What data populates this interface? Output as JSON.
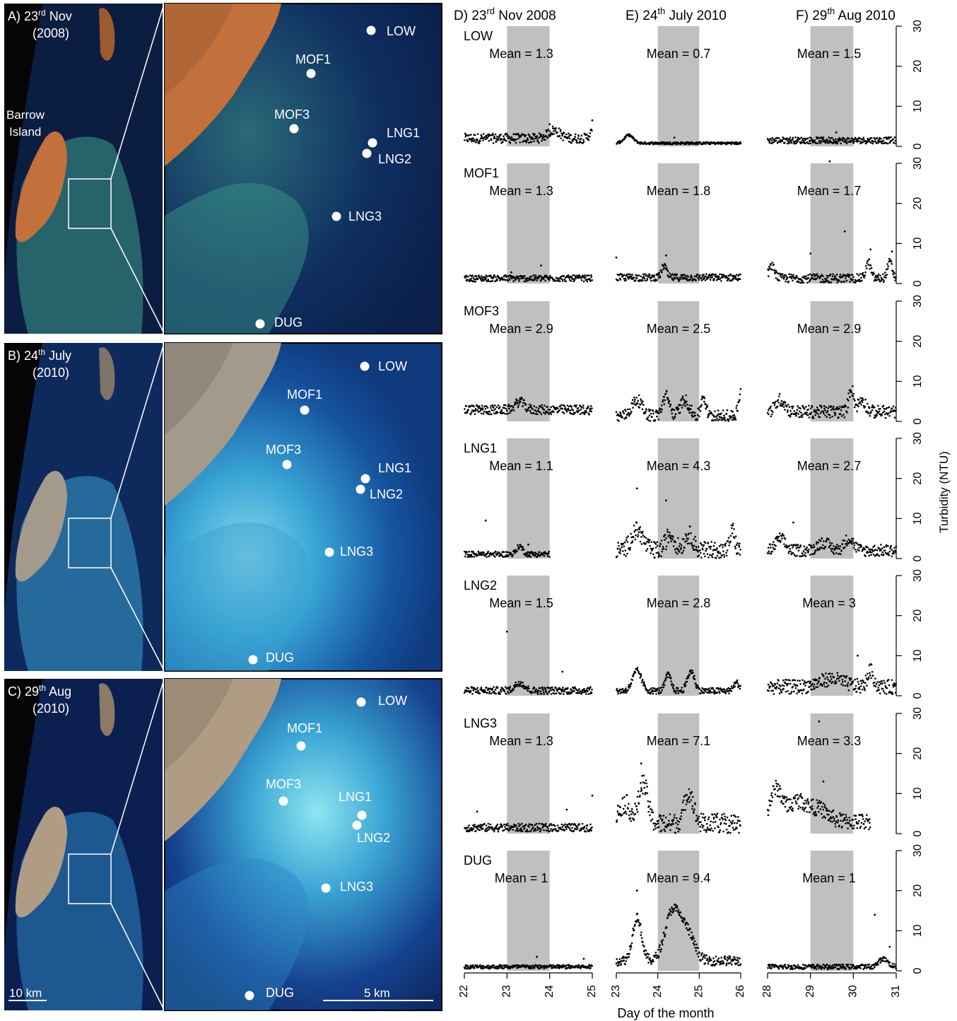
{
  "rows": [
    {
      "label": "A) 23",
      "sup": "rd",
      "label_rest": " Nov",
      "year": "(2008)",
      "theme": "nov"
    },
    {
      "label": "B) 24",
      "sup": "th",
      "label_rest": " July",
      "year": "(2010)",
      "theme": "jul"
    },
    {
      "label": "C) 29",
      "sup": "th",
      "label_rest": " Aug",
      "year": "(2010)",
      "theme": "aug"
    }
  ],
  "island_label": [
    "Barrow",
    "Island"
  ],
  "scale_left": "10 km",
  "scale_right": "5 km",
  "sites": [
    {
      "name": "LOW",
      "pos": [
        [
          525,
          43
        ],
        [
          516,
          518
        ],
        [
          511,
          993
        ]
      ],
      "lab": [
        [
          547,
          44
        ],
        [
          535,
          518
        ],
        [
          535,
          991
        ]
      ]
    },
    {
      "name": "MOF1",
      "pos": [
        [
          440,
          104
        ],
        [
          431,
          580
        ],
        [
          426,
          1055
        ]
      ],
      "lab": [
        [
          418,
          84
        ],
        [
          406,
          558
        ],
        [
          406,
          1030
        ]
      ]
    },
    {
      "name": "MOF3",
      "pos": [
        [
          416,
          182
        ],
        [
          406,
          657
        ],
        [
          401,
          1133
        ]
      ],
      "lab": [
        [
          388,
          162
        ],
        [
          376,
          636
        ],
        [
          376,
          1109
        ]
      ]
    },
    {
      "name": "LNG1",
      "pos": [
        [
          527,
          202
        ],
        [
          517,
          677
        ],
        [
          512,
          1153
        ]
      ],
      "lab": [
        [
          547,
          188
        ],
        [
          535,
          662
        ],
        [
          479,
          1127
        ]
      ]
    },
    {
      "name": "LNG2",
      "pos": [
        [
          519,
          217
        ],
        [
          510,
          692
        ],
        [
          505,
          1167
        ]
      ],
      "lab": [
        [
          535,
          225
        ],
        [
          523,
          699
        ],
        [
          505,
          1185
        ]
      ]
    },
    {
      "name": "LNG3",
      "pos": [
        [
          476,
          306
        ],
        [
          466,
          781
        ],
        [
          461,
          1256
        ]
      ],
      "lab": [
        [
          493,
          306
        ],
        [
          481,
          780
        ],
        [
          481,
          1254
        ]
      ]
    },
    {
      "name": "DUG",
      "pos": [
        [
          368,
          458
        ],
        [
          358,
          933
        ],
        [
          353,
          1408
        ]
      ],
      "lab": [
        [
          388,
          456
        ],
        [
          376,
          930
        ],
        [
          376,
          1404
        ]
      ]
    }
  ],
  "chart_data": {
    "type": "scatter",
    "column_titles": [
      {
        "pre": "D) 23",
        "sup": "rd",
        "post": " Nov 2008"
      },
      {
        "pre": "E) 24",
        "sup": "th",
        "post": " July 2010"
      },
      {
        "pre": "F) 29",
        "sup": "th",
        "post": " Aug 2010"
      }
    ],
    "x_ranges": [
      [
        22,
        25
      ],
      [
        23,
        26
      ],
      [
        28,
        31
      ]
    ],
    "x_ticks": [
      [
        22,
        23,
        24,
        25
      ],
      [
        23,
        24,
        25,
        26
      ],
      [
        28,
        29,
        30,
        31
      ]
    ],
    "shaded_days": [
      [
        23,
        24
      ],
      [
        24,
        25
      ],
      [
        29,
        30
      ]
    ],
    "xlabel": "Day of the month",
    "ylabel": "Turbidity (NTU)",
    "ylim": [
      0,
      30
    ],
    "y_ticks": [
      0,
      10,
      20,
      30
    ],
    "marker_color": "#000000",
    "shade_color": "#c0c0c0",
    "panels": [
      {
        "site": "LOW",
        "means": [
          "Mean = 1.3",
          "Mean = 0.7",
          "Mean = 1.5"
        ],
        "base": [
          2,
          0.8,
          1.5
        ],
        "spread": [
          1.2,
          0.3,
          0.8
        ],
        "end": [
          25,
          26,
          31
        ],
        "peaks": [
          [
            [
              24.1,
              2,
              0.2
            ],
            [
              25,
              1.5,
              0.1
            ]
          ],
          [
            [
              23.3,
              2,
              0.15
            ]
          ],
          []
        ],
        "outliers": [
          [
            [
              24.0,
              5.5
            ],
            [
              25,
              6.5
            ]
          ],
          [
            [
              24.4,
              2.2
            ]
          ],
          [
            [
              29.6,
              3.5
            ]
          ]
        ]
      },
      {
        "site": "MOF1",
        "means": [
          "Mean = 1.3",
          "Mean = 1.8",
          "Mean = 1.7"
        ],
        "base": [
          1.3,
          1.5,
          1.3
        ],
        "spread": [
          0.8,
          0.9,
          1.1
        ],
        "end": [
          25,
          26,
          31
        ],
        "peaks": [
          [],
          [
            [
              24.15,
              3,
              0.08
            ]
          ],
          [
            [
              28.1,
              3,
              0.1
            ],
            [
              30.35,
              4,
              0.08
            ],
            [
              30.85,
              4,
              0.08
            ]
          ]
        ],
        "outliers": [
          [
            [
              23.1,
              2.8
            ],
            [
              23.8,
              4.5
            ]
          ],
          [
            [
              23.0,
              6.5
            ],
            [
              24.2,
              7
            ]
          ],
          [
            [
              29.45,
              30.5
            ],
            [
              29.8,
              13
            ],
            [
              29.0,
              7.5
            ],
            [
              30.4,
              8.5
            ],
            [
              30.9,
              8
            ]
          ]
        ]
      },
      {
        "site": "MOF3",
        "means": [
          "Mean = 2.9",
          "Mean = 2.5",
          "Mean = 2.9"
        ],
        "base": [
          2.9,
          1.3,
          2.4
        ],
        "spread": [
          1.2,
          1.5,
          1.6
        ],
        "end": [
          25,
          26,
          31
        ],
        "peaks": [
          [
            [
              23.3,
              2,
              0.15
            ]
          ],
          [
            [
              23.5,
              4,
              0.18
            ],
            [
              24.2,
              5,
              0.12
            ],
            [
              24.65,
              4,
              0.15
            ],
            [
              25.1,
              5,
              0.08
            ],
            [
              26,
              6,
              0.08
            ]
          ],
          [
            [
              28.3,
              3,
              0.15
            ],
            [
              29.95,
              6,
              0.08
            ],
            [
              30.2,
              3,
              0.12
            ]
          ]
        ]
      },
      {
        "site": "LNG1",
        "means": [
          "Mean = 1.1",
          "Mean = 4.3",
          "Mean = 2.7"
        ],
        "base": [
          1.1,
          2,
          2
        ],
        "spread": [
          0.7,
          2.2,
          1.5
        ],
        "end": [
          24,
          26,
          31
        ],
        "peaks": [
          [
            [
              23.3,
              2,
              0.1
            ]
          ],
          [
            [
              23.5,
              5,
              0.2
            ],
            [
              24.3,
              4,
              0.15
            ],
            [
              24.75,
              4,
              0.15
            ],
            [
              25.8,
              5,
              0.08
            ]
          ],
          [
            [
              28.3,
              3,
              0.15
            ],
            [
              29.3,
              2,
              0.2
            ],
            [
              29.9,
              3,
              0.15
            ]
          ]
        ],
        "outliers": [
          [
            [
              22.5,
              9.5
            ],
            [
              23.5,
              3.5
            ]
          ],
          [
            [
              23.5,
              17.5
            ],
            [
              24.2,
              14.5
            ]
          ],
          [
            [
              28.6,
              9
            ]
          ]
        ]
      },
      {
        "site": "LNG2",
        "means": [
          "Mean = 1.5",
          "Mean = 2.8",
          "Mean = 3"
        ],
        "base": [
          1.3,
          1.2,
          2.2
        ],
        "spread": [
          0.9,
          0.8,
          1.8
        ],
        "end": [
          25,
          26,
          31
        ],
        "peaks": [
          [
            [
              23.3,
              2,
              0.15
            ]
          ],
          [
            [
              23.5,
              5,
              0.15
            ],
            [
              24.25,
              4,
              0.1
            ],
            [
              24.8,
              5,
              0.12
            ],
            [
              25.9,
              2,
              0.1
            ]
          ],
          [
            [
              29.5,
              2,
              0.4
            ],
            [
              30.4,
              4,
              0.1
            ]
          ]
        ],
        "outliers": [
          [
            [
              23.0,
              16
            ],
            [
              24.3,
              6
            ]
          ],
          [],
          [
            [
              30.1,
              10
            ]
          ]
        ]
      },
      {
        "site": "LNG3",
        "means": [
          "Mean = 1.3",
          "Mean = 7.1",
          "Mean = 3.3"
        ],
        "base": [
          1.5,
          2.5,
          3
        ],
        "spread": [
          1.0,
          2.5,
          2
        ],
        "end": [
          25,
          26,
          30.4
        ],
        "peaks": [
          [],
          [
            [
              23.2,
              5,
              0.2
            ],
            [
              23.65,
              10,
              0.15
            ],
            [
              24.75,
              8,
              0.15
            ]
          ],
          [
            [
              28.2,
              8,
              0.2
            ],
            [
              28.7,
              5,
              0.3
            ],
            [
              29.2,
              3,
              0.3
            ]
          ]
        ],
        "outliers": [
          [
            [
              22.3,
              5.5
            ],
            [
              24.4,
              6
            ],
            [
              25,
              9.5
            ]
          ],
          [
            [
              23.6,
              17.5
            ]
          ],
          [
            [
              29.2,
              28
            ],
            [
              29.3,
              13
            ]
          ]
        ]
      },
      {
        "site": "DUG",
        "means": [
          "Mean = 1",
          "Mean = 9.4",
          "Mean = 1"
        ],
        "base": [
          1,
          2.5,
          1
        ],
        "spread": [
          0.5,
          1.2,
          0.6
        ],
        "end": [
          25,
          26,
          31
        ],
        "peaks": [
          [],
          [
            [
              23.5,
              11,
              0.15
            ],
            [
              24.35,
              12,
              0.25
            ],
            [
              24.7,
              7,
              0.25
            ]
          ],
          [
            [
              30.7,
              2,
              0.15
            ]
          ]
        ],
        "outliers": [
          [
            [
              23.7,
              3.5
            ],
            [
              24.8,
              3
            ]
          ],
          [
            [
              23.5,
              20
            ]
          ],
          [
            [
              30.5,
              14
            ],
            [
              30.85,
              6
            ]
          ]
        ]
      }
    ]
  }
}
